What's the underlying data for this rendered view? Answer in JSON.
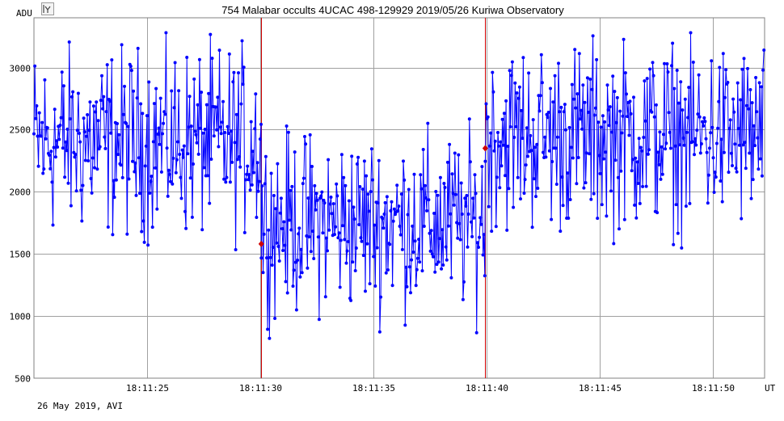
{
  "header": {
    "title": "754 Malabar occults 4UCAC 498-129929   2019/05/26   Kuriwa Observatory"
  },
  "footer": {
    "label": "26 May 2019, AVI"
  },
  "icons": {
    "app": "chart-app-icon"
  },
  "colors": {
    "series": "#0000ff",
    "marker": "#d00000",
    "grid": "#a0a0a0"
  },
  "chart_data": {
    "type": "line",
    "title": "754 Malabar occults 4UCAC 498-129929   2019/05/26   Kuriwa Observatory",
    "xlabel": "UT",
    "ylabel": "ADU",
    "xlim": [
      20.0,
      52.3
    ],
    "ylim": [
      500,
      3400
    ],
    "grid": true,
    "y_ticks": [
      500,
      1000,
      1500,
      2000,
      2500,
      3000
    ],
    "x_ticks": [
      {
        "value": 25,
        "label": "18:11:25"
      },
      {
        "value": 30,
        "label": "18:11:30"
      },
      {
        "value": 35,
        "label": "18:11:35"
      },
      {
        "value": 40,
        "label": "18:11:40"
      },
      {
        "value": 45,
        "label": "18:11:45"
      },
      {
        "value": 50,
        "label": "18:11:50"
      }
    ],
    "markers": [
      {
        "x": 30.05,
        "y": 1580
      },
      {
        "x": 39.95,
        "y": 2350
      }
    ],
    "vlines": [
      30.05,
      39.95
    ],
    "segments": [
      {
        "x0": 20.0,
        "x1": 30.05,
        "base": 2400,
        "spread": 900
      },
      {
        "x0": 30.05,
        "x1": 39.95,
        "base": 1750,
        "spread": 850
      },
      {
        "x0": 39.95,
        "x1": 52.3,
        "base": 2450,
        "spread": 900
      }
    ],
    "step": 0.04
  }
}
